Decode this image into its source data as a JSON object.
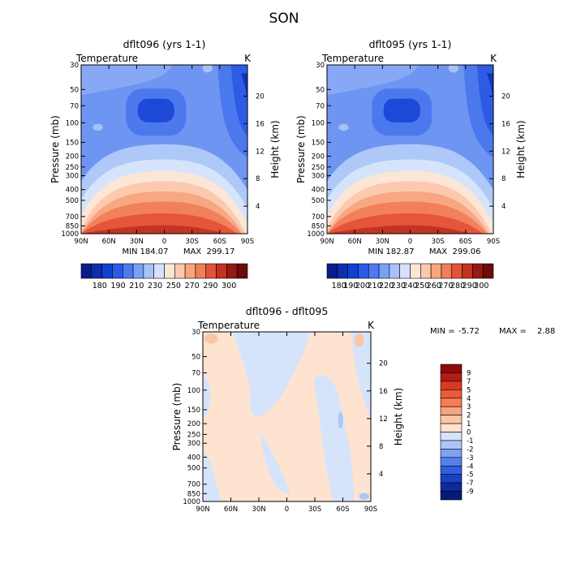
{
  "page": {
    "title": "SON"
  },
  "chart_data": [
    {
      "type": "heatmap",
      "title": "dflt096 (yrs 1-1)",
      "subtitle": "Temperature",
      "unit": "K",
      "ylabel": "Pressure (mb)",
      "ylabel_right": "Height (km)",
      "x_ticks": [
        "90N",
        "60N",
        "30N",
        "0",
        "30S",
        "60S",
        "90S"
      ],
      "y_ticks": [
        "30",
        "50",
        "70",
        "100",
        "150",
        "200",
        "250",
        "300",
        "400",
        "500",
        "700",
        "850",
        "1000"
      ],
      "y_ticks_right": [
        "20",
        "16",
        "12",
        "8",
        "4"
      ],
      "stats": {
        "min_label": "MIN",
        "min": "184.07",
        "max_label": "MAX",
        "max": "299.17"
      },
      "colorbar": {
        "labels": [
          "180",
          "190",
          "210",
          "230",
          "250",
          "270",
          "290",
          "300"
        ],
        "colors": [
          "#081d8c",
          "#0c2fb0",
          "#1240d0",
          "#2a5ae8",
          "#4d7af0",
          "#7aa0f5",
          "#a8c2f8",
          "#d4e2fb",
          "#fbe6d6",
          "#fbc9ab",
          "#f8a57f",
          "#f27e57",
          "#e2533a",
          "#c33222",
          "#941a12",
          "#6b0c08"
        ]
      }
    },
    {
      "type": "heatmap",
      "title": "dflt095 (yrs 1-1)",
      "subtitle": "Temperature",
      "unit": "K",
      "ylabel": "Pressure (mb)",
      "ylabel_right": "Height (km)",
      "x_ticks": [
        "90N",
        "60N",
        "30N",
        "0",
        "30S",
        "60S",
        "90S"
      ],
      "y_ticks": [
        "30",
        "50",
        "70",
        "100",
        "150",
        "200",
        "250",
        "300",
        "400",
        "500",
        "700",
        "850",
        "1000"
      ],
      "y_ticks_right": [
        "20",
        "16",
        "12",
        "8",
        "4"
      ],
      "stats": {
        "min_label": "MIN",
        "min": "182.87",
        "max_label": "MAX",
        "max": "299.06"
      },
      "colorbar": {
        "labels": [
          "180",
          "190",
          "200",
          "210",
          "220",
          "230",
          "240",
          "250",
          "260",
          "270",
          "280",
          "290",
          "300"
        ],
        "colors": [
          "#081d8c",
          "#0c2fb0",
          "#1240d0",
          "#2a5ae8",
          "#4d7af0",
          "#7aa0f5",
          "#a8c2f8",
          "#d4e2fb",
          "#fbe6d6",
          "#fbc9ab",
          "#f8a57f",
          "#f27e57",
          "#e2533a",
          "#c33222",
          "#941a12",
          "#6b0c08"
        ]
      }
    },
    {
      "type": "heatmap",
      "title": "dflt096 - dflt095",
      "subtitle": "Temperature",
      "unit": "K",
      "ylabel": "Pressure (mb)",
      "ylabel_right": "Height (km)",
      "x_ticks": [
        "90N",
        "60N",
        "30N",
        "0",
        "30S",
        "60S",
        "90S"
      ],
      "y_ticks": [
        "30",
        "50",
        "70",
        "100",
        "150",
        "200",
        "250",
        "300",
        "400",
        "500",
        "700",
        "850",
        "1000"
      ],
      "y_ticks_right": [
        "20",
        "16",
        "12",
        "8",
        "4"
      ],
      "stats": {
        "min_label": "MIN =",
        "min": "-5.72",
        "max_label": "MAX =",
        "max": "2.88"
      },
      "colorbar": {
        "labels": [
          "9",
          "7",
          "5",
          "4",
          "3",
          "2",
          "1",
          "0",
          "-1",
          "-2",
          "-3",
          "-4",
          "-5",
          "-7",
          "-9"
        ],
        "colors": [
          "#8c0c0a",
          "#b21c14",
          "#d63a22",
          "#ec5a36",
          "#f57e55",
          "#f9a47e",
          "#fbc6a6",
          "#fde3d0",
          "#d6e4fb",
          "#adc6f8",
          "#7ea2f3",
          "#5580ec",
          "#2f5ee0",
          "#1a40c4",
          "#0e2aa0",
          "#061a7a"
        ]
      }
    }
  ]
}
